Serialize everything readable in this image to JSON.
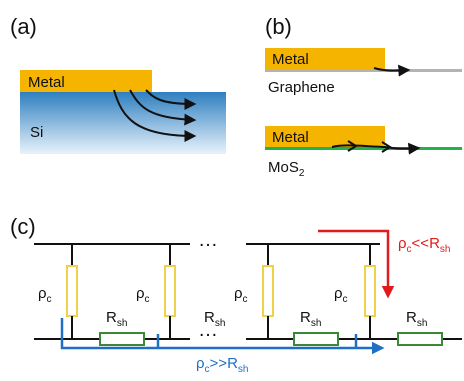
{
  "colors": {
    "metal": "#f5b400",
    "si_top": "#2f7fc0",
    "si_bottom": "#e8f3fb",
    "graphene": "#b3b3b3",
    "mos2": "#22b24a",
    "arrow": "#111111",
    "resistor_pc": "#f0d24a",
    "resistor_rsh": "#3a8a35",
    "red_arrow": "#e11b1b",
    "blue_arrow": "#1f6fc4"
  },
  "panel_a": {
    "label": "(a)",
    "metal": "Metal",
    "substrate": "Si"
  },
  "panel_b": {
    "label": "(b)",
    "metal1": "Metal",
    "layer1": "Graphene",
    "metal2": "Metal",
    "layer2_main": "MoS",
    "layer2_sub": "2"
  },
  "panel_c": {
    "label": "(c)",
    "ellipsis": "…",
    "rho": "ρ",
    "rho_sub": "c",
    "r": "R",
    "r_sub": "sh",
    "red_label": {
      "a": "ρ",
      "a_sub": "c",
      "op": "<<R",
      "b_sub": "sh"
    },
    "blue_label": {
      "a": "ρ",
      "a_sub": "c",
      "op": ">>R",
      "b_sub": "sh"
    }
  }
}
